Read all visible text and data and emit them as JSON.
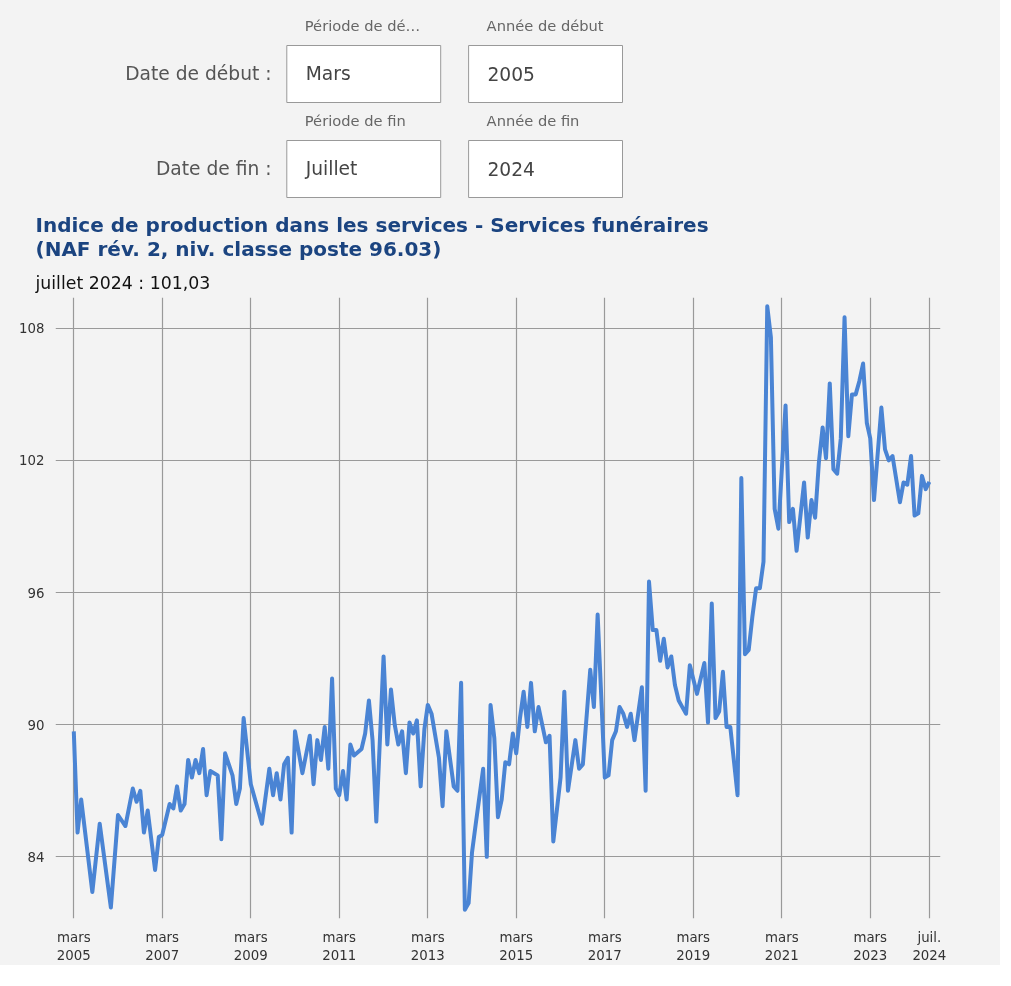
{
  "chart_data": {
    "type": "line",
    "title": "Indice de production dans les services - Services funéraires\n(NAF rév. 2, niv. classe poste 96.03)",
    "subtitle": "juillet 2024 : 101,03",
    "annotations": [
      "Date de début :",
      "Période de dé…",
      "Mars",
      "Année de début",
      "2005",
      "Date de fin :",
      "Période de fin",
      "Juillet",
      "Année de fin",
      "2024"
    ],
    "x": [
      "2005-03",
      "2005-04",
      "2005-05",
      "2005-08",
      "2005-10",
      "2006-01",
      "2006-03",
      "2006-05",
      "2006-07",
      "2006-08",
      "2006-09",
      "2006-10",
      "2006-11",
      "2007-01",
      "2007-02",
      "2007-03",
      "2007-05",
      "2007-06",
      "2007-07",
      "2007-08",
      "2007-09",
      "2007-10",
      "2007-11",
      "2007-12",
      "2008-01",
      "2008-02",
      "2008-03",
      "2008-04",
      "2008-06",
      "2008-07",
      "2008-08",
      "2008-10",
      "2008-11",
      "2008-12",
      "2009-01",
      "2009-03",
      "2009-06",
      "2009-08",
      "2009-09",
      "2009-10",
      "2009-11",
      "2009-12",
      "2010-01",
      "2010-02",
      "2010-03",
      "2010-05",
      "2010-07",
      "2010-08",
      "2010-09",
      "2010-10",
      "2010-11",
      "2010-12",
      "2011-01",
      "2011-02",
      "2011-03",
      "2011-04",
      "2011-05",
      "2011-06",
      "2011-07",
      "2011-09",
      "2011-10",
      "2011-11",
      "2011-12",
      "2012-01",
      "2012-03",
      "2012-04",
      "2012-05",
      "2012-06",
      "2012-07",
      "2012-08",
      "2012-09",
      "2012-10",
      "2012-11",
      "2012-12",
      "2013-01",
      "2013-02",
      "2013-03",
      "2013-04",
      "2013-06",
      "2013-07",
      "2013-08",
      "2013-10",
      "2013-11",
      "2013-12",
      "2014-01",
      "2014-02",
      "2014-03",
      "2014-04",
      "2014-06",
      "2014-07",
      "2014-08",
      "2014-09",
      "2014-10",
      "2014-11",
      "2014-12",
      "2015-01",
      "2015-02",
      "2015-03",
      "2015-04",
      "2015-05",
      "2015-06",
      "2015-07",
      "2015-08",
      "2015-09",
      "2015-11",
      "2015-12",
      "2016-01",
      "2016-03",
      "2016-04",
      "2016-05",
      "2016-07",
      "2016-08",
      "2016-09",
      "2016-11",
      "2016-12",
      "2017-01",
      "2017-03",
      "2017-04",
      "2017-05",
      "2017-06",
      "2017-07",
      "2017-08",
      "2017-09",
      "2017-10",
      "2017-11",
      "2018-01",
      "2018-02",
      "2018-03",
      "2018-04",
      "2018-05",
      "2018-06",
      "2018-07",
      "2018-08",
      "2018-09",
      "2018-10",
      "2018-11",
      "2018-12",
      "2019-01",
      "2019-02",
      "2019-04",
      "2019-06",
      "2019-07",
      "2019-08",
      "2019-09",
      "2019-10",
      "2019-11",
      "2019-12",
      "2020-01",
      "2020-03",
      "2020-04",
      "2020-05",
      "2020-06",
      "2020-07",
      "2020-08",
      "2020-09",
      "2020-10",
      "2020-11",
      "2020-12",
      "2021-01",
      "2021-02",
      "2021-04",
      "2021-05",
      "2021-06",
      "2021-07",
      "2021-09",
      "2021-10",
      "2021-11",
      "2021-12",
      "2022-01",
      "2022-02",
      "2022-03",
      "2022-04",
      "2022-05",
      "2022-06",
      "2022-07",
      "2022-08",
      "2022-09",
      "2022-10",
      "2022-11",
      "2022-12",
      "2023-01",
      "2023-02",
      "2023-03",
      "2023-04",
      "2023-06",
      "2023-07",
      "2023-08",
      "2023-09",
      "2023-11",
      "2023-12",
      "2024-01",
      "2024-02",
      "2024-03",
      "2024-04",
      "2024-05",
      "2024-06",
      "2024-07"
    ],
    "series": [
      {
        "color": "#4a84d4",
        "values": [
          89.7,
          85.1,
          86.6,
          82.4,
          85.5,
          81.7,
          85.9,
          85.4,
          87.1,
          86.5,
          87.0,
          85.1,
          86.1,
          83.4,
          84.9,
          85.0,
          86.4,
          86.2,
          87.2,
          86.1,
          86.4,
          88.4,
          87.6,
          88.4,
          87.8,
          88.9,
          86.8,
          87.9,
          87.7,
          84.8,
          88.7,
          87.7,
          86.4,
          87.1,
          90.3,
          87.3,
          85.5,
          88.0,
          86.8,
          87.8,
          86.6,
          88.2,
          88.5,
          85.1,
          89.7,
          87.8,
          89.5,
          87.3,
          89.3,
          88.4,
          89.9,
          88.0,
          92.1,
          87.1,
          86.8,
          87.9,
          86.6,
          89.1,
          88.6,
          88.9,
          89.6,
          91.1,
          89.3,
          85.6,
          93.1,
          89.1,
          91.6,
          90.0,
          89.1,
          89.7,
          87.8,
          90.1,
          89.6,
          90.2,
          87.2,
          89.8,
          90.9,
          90.5,
          88.5,
          86.3,
          89.7,
          87.2,
          87.0,
          91.9,
          81.6,
          81.9,
          84.2,
          85.5,
          88.0,
          84.0,
          90.9,
          89.4,
          85.8,
          86.6,
          88.3,
          88.2,
          89.6,
          88.7,
          90.3,
          91.5,
          89.9,
          91.9,
          89.7,
          90.8,
          89.2,
          89.5,
          84.7,
          87.6,
          91.5,
          87.0,
          89.3,
          88.0,
          88.2,
          92.5,
          90.8,
          95.0,
          87.6,
          87.7,
          89.3,
          89.7,
          90.8,
          90.5,
          89.9,
          90.5,
          89.3,
          91.7,
          87.0,
          96.5,
          94.3,
          94.3,
          92.9,
          93.9,
          92.6,
          93.1,
          91.8,
          91.1,
          90.8,
          90.5,
          92.7,
          91.4,
          92.8,
          90.1,
          95.5,
          90.3,
          90.6,
          92.4,
          89.9,
          89.9,
          86.8,
          101.2,
          93.2,
          93.4,
          94.9,
          96.2,
          96.2,
          97.4,
          109.0,
          107.6,
          99.8,
          98.9,
          104.5,
          99.2,
          99.8,
          97.9,
          101.0,
          98.5,
          100.2,
          99.4,
          101.9,
          103.5,
          102.1,
          105.5,
          101.6,
          101.4,
          103.0,
          108.5,
          103.1,
          105.0,
          105.0,
          105.6,
          106.4,
          103.7,
          103.0,
          100.2,
          104.4,
          102.5,
          102.0,
          102.2,
          100.1,
          101.0,
          100.9,
          102.2,
          99.5,
          99.6,
          101.3,
          100.7,
          101.03
        ]
      }
    ],
    "xlim": [
      "2004-10",
      "2024-10"
    ],
    "xticks": [
      {
        "value": "2005-03",
        "label": "mars\n2005"
      },
      {
        "value": "2007-03",
        "label": "mars\n2007"
      },
      {
        "value": "2009-03",
        "label": "mars\n2009"
      },
      {
        "value": "2011-03",
        "label": "mars\n2011"
      },
      {
        "value": "2013-03",
        "label": "mars\n2013"
      },
      {
        "value": "2015-03",
        "label": "mars\n2015"
      },
      {
        "value": "2017-03",
        "label": "mars\n2017"
      },
      {
        "value": "2019-03",
        "label": "mars\n2019"
      },
      {
        "value": "2021-03",
        "label": "mars\n2021"
      },
      {
        "value": "2023-03",
        "label": "mars\n2023"
      },
      {
        "value": "2024-07",
        "label": "juil.\n2024"
      }
    ],
    "ylim": [
      81.2,
      109.4
    ],
    "yticks": [
      84,
      90,
      96,
      102,
      108
    ],
    "grid": true,
    "line_style": "solid"
  }
}
